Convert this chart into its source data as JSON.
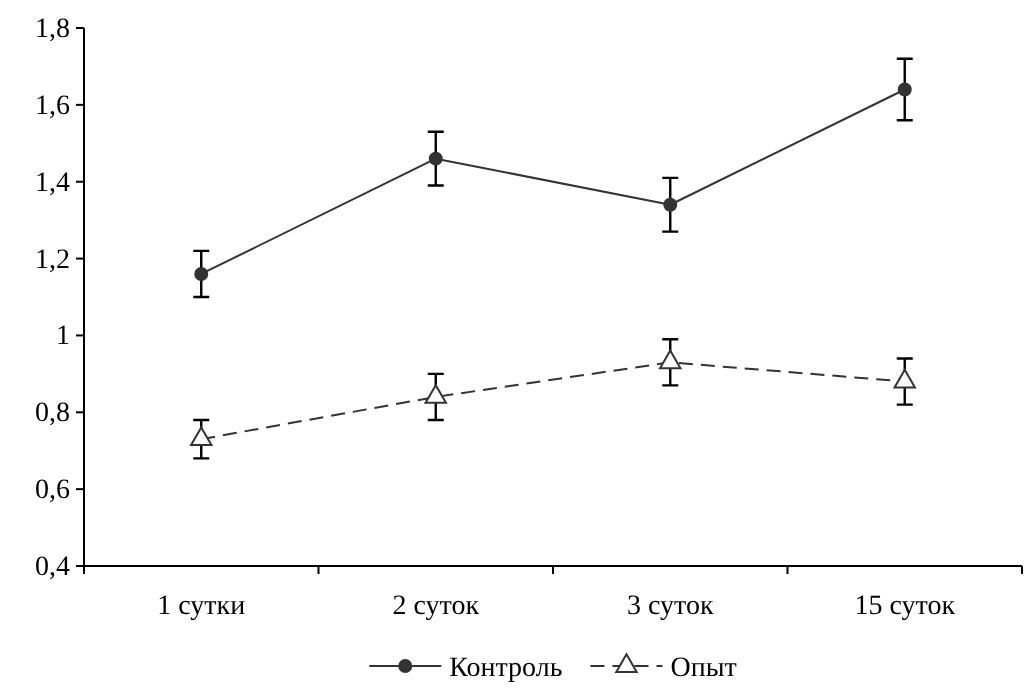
{
  "chart_data": {
    "type": "line",
    "categories": [
      "1 сутки",
      "2 суток",
      "3 суток",
      "15 суток"
    ],
    "ylim": [
      0.4,
      1.8
    ],
    "yticks": [
      {
        "value": 0.4,
        "label": "0,4"
      },
      {
        "value": 0.6,
        "label": "0,6"
      },
      {
        "value": 0.8,
        "label": "0,8"
      },
      {
        "value": 1,
        "label": "1"
      },
      {
        "value": 1.2,
        "label": "1,2"
      },
      {
        "value": 1.4,
        "label": "1,4"
      },
      {
        "value": 1.6,
        "label": "1,6"
      },
      {
        "value": 1.8,
        "label": "1,8"
      }
    ],
    "legend": "bottom",
    "grid": false,
    "series": [
      {
        "name": "Контроль",
        "color": "#333333",
        "marker": "circle",
        "line_style": "solid",
        "values": [
          1.16,
          1.46,
          1.34,
          1.64
        ],
        "errors": [
          [
            1.1,
            1.22
          ],
          [
            1.39,
            1.53
          ],
          [
            1.27,
            1.41
          ],
          [
            1.56,
            1.72
          ]
        ]
      },
      {
        "name": "Опыт",
        "color": "#333333",
        "marker": "triangle",
        "line_style": "dashed",
        "values": [
          0.73,
          0.84,
          0.93,
          0.88
        ],
        "errors": [
          [
            0.68,
            0.78
          ],
          [
            0.78,
            0.9
          ],
          [
            0.87,
            0.99
          ],
          [
            0.82,
            0.94
          ]
        ]
      }
    ]
  }
}
